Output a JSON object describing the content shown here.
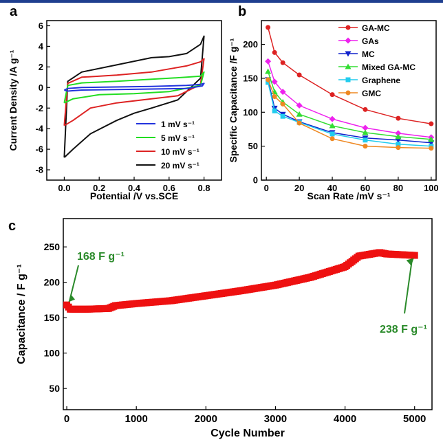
{
  "chart_data": [
    {
      "panel": "a",
      "type": "line",
      "xlabel": "Potential /V vs.SCE",
      "ylabel": "Current Density /A g⁻¹",
      "xlim": [
        -0.1,
        0.9
      ],
      "ylim": [
        -9,
        6.5
      ],
      "xticks": [
        0.0,
        0.2,
        0.4,
        0.6,
        0.8
      ],
      "xtick_labels": [
        "0.0",
        "0.2",
        "0.4",
        "0.6",
        "0.8"
      ],
      "yticks": [
        -8,
        -6,
        -4,
        -2,
        0,
        2,
        4,
        6
      ],
      "ytick_labels": [
        "-8",
        "-6",
        "-4",
        "-2",
        "0",
        "2",
        "4",
        "6"
      ],
      "legend_position": "bottom-right",
      "series": [
        {
          "name": "1 mV s⁻¹",
          "color": "#2233dd",
          "x": [
            0.0,
            0.02,
            0.1,
            0.3,
            0.5,
            0.7,
            0.78,
            0.8,
            0.79,
            0.7,
            0.5,
            0.3,
            0.1,
            0.02,
            0.0
          ],
          "y": [
            -0.25,
            -0.1,
            0.0,
            0.05,
            0.1,
            0.2,
            0.3,
            0.4,
            0.15,
            -0.1,
            -0.15,
            -0.2,
            -0.25,
            -0.35,
            -0.25
          ]
        },
        {
          "name": "5 mV s⁻¹",
          "color": "#22dd22",
          "x": [
            0.0,
            0.02,
            0.1,
            0.3,
            0.5,
            0.7,
            0.78,
            0.8,
            0.78,
            0.6,
            0.4,
            0.2,
            0.05,
            0.0
          ],
          "y": [
            -1.5,
            0.2,
            0.45,
            0.6,
            0.8,
            1.0,
            1.1,
            1.5,
            0.2,
            -0.4,
            -0.6,
            -0.7,
            -1.1,
            -1.5
          ]
        },
        {
          "name": "10 mV s⁻¹",
          "color": "#dd2222",
          "x": [
            0.0,
            0.02,
            0.1,
            0.3,
            0.5,
            0.6,
            0.7,
            0.78,
            0.8,
            0.78,
            0.65,
            0.5,
            0.4,
            0.3,
            0.15,
            0.05,
            0.0
          ],
          "y": [
            -3.7,
            0.4,
            1.0,
            1.2,
            1.5,
            1.8,
            2.1,
            2.5,
            2.8,
            0.3,
            -0.8,
            -1.1,
            -1.3,
            -1.5,
            -2.0,
            -3.2,
            -3.7
          ]
        },
        {
          "name": "20 mV s⁻¹",
          "color": "#111111",
          "x": [
            0.0,
            0.02,
            0.1,
            0.3,
            0.5,
            0.6,
            0.7,
            0.78,
            0.8,
            0.78,
            0.65,
            0.5,
            0.4,
            0.3,
            0.15,
            0.05,
            0.0
          ],
          "y": [
            -6.8,
            0.6,
            1.5,
            2.2,
            2.9,
            3.0,
            3.3,
            4.2,
            5.0,
            0.9,
            -1.2,
            -2.0,
            -2.5,
            -3.2,
            -4.5,
            -6.0,
            -6.8
          ]
        }
      ]
    },
    {
      "panel": "b",
      "type": "line",
      "xlabel": "Scan Rate /mV s⁻¹",
      "ylabel": "Specific Capacitance /F g⁻¹",
      "xlim": [
        -3,
        103
      ],
      "ylim": [
        0,
        235
      ],
      "xticks": [
        0,
        20,
        40,
        60,
        80,
        100
      ],
      "xtick_labels": [
        "0",
        "20",
        "40",
        "60",
        "80",
        "100"
      ],
      "yticks": [
        0,
        50,
        100,
        150,
        200
      ],
      "ytick_labels": [
        "0",
        "50",
        "100",
        "150",
        "200"
      ],
      "legend_position": "top-right",
      "x": [
        1,
        5,
        10,
        20,
        40,
        60,
        80,
        100
      ],
      "series": [
        {
          "name": "GA-MC",
          "color": "#dd2222",
          "marker": "circle",
          "values": [
            225,
            188,
            173,
            155,
            126,
            104,
            91,
            83
          ]
        },
        {
          "name": "GAs",
          "color": "#ee22ee",
          "marker": "diamond",
          "values": [
            175,
            145,
            130,
            110,
            90,
            77,
            69,
            63
          ]
        },
        {
          "name": "MC",
          "color": "#1122cc",
          "marker": "triangle-down",
          "values": [
            148,
            106,
            97,
            86,
            70,
            62,
            59,
            55
          ]
        },
        {
          "name": "Mixed GA-MC",
          "color": "#33dd33",
          "marker": "triangle-up",
          "values": [
            160,
            130,
            115,
            97,
            80,
            70,
            64,
            60
          ]
        },
        {
          "name": "Graphene",
          "color": "#22ccee",
          "marker": "square",
          "values": [
            144,
            102,
            94,
            85,
            68,
            59,
            53,
            50
          ]
        },
        {
          "name": "GMC",
          "color": "#ee8822",
          "marker": "circle",
          "values": [
            148,
            123,
            112,
            84,
            61,
            50,
            48,
            47
          ]
        }
      ]
    },
    {
      "panel": "c",
      "type": "scatter",
      "xlabel": "Cycle Number",
      "ylabel": "Capacitance / F g⁻¹",
      "xlim": [
        -50,
        5250
      ],
      "ylim": [
        20,
        290
      ],
      "xticks": [
        0,
        1000,
        2000,
        3000,
        4000,
        5000
      ],
      "xtick_labels": [
        "0",
        "1000",
        "2000",
        "3000",
        "4000",
        "5000"
      ],
      "yticks": [
        50,
        100,
        150,
        200,
        250
      ],
      "ytick_labels": [
        "50",
        "100",
        "150",
        "200",
        "250"
      ],
      "color": "#ee1111",
      "marker": "square",
      "key_points": [
        [
          0,
          168
        ],
        [
          50,
          162
        ],
        [
          300,
          162
        ],
        [
          600,
          163
        ],
        [
          700,
          167
        ],
        [
          1000,
          170
        ],
        [
          1500,
          174
        ],
        [
          2000,
          181
        ],
        [
          2500,
          188
        ],
        [
          3000,
          196
        ],
        [
          3500,
          207
        ],
        [
          4000,
          222
        ],
        [
          4200,
          237
        ],
        [
          4500,
          242
        ],
        [
          4600,
          240
        ],
        [
          5000,
          238
        ]
      ],
      "n_points": 200,
      "annotations": [
        {
          "text": "168 F g⁻¹",
          "x": 0,
          "y": 168,
          "color": "#2a8a2a"
        },
        {
          "text": "238 F g⁻¹",
          "x": 5000,
          "y": 238,
          "color": "#2a8a2a"
        }
      ]
    }
  ],
  "panel_labels": {
    "a": "a",
    "b": "b",
    "c": "c"
  }
}
